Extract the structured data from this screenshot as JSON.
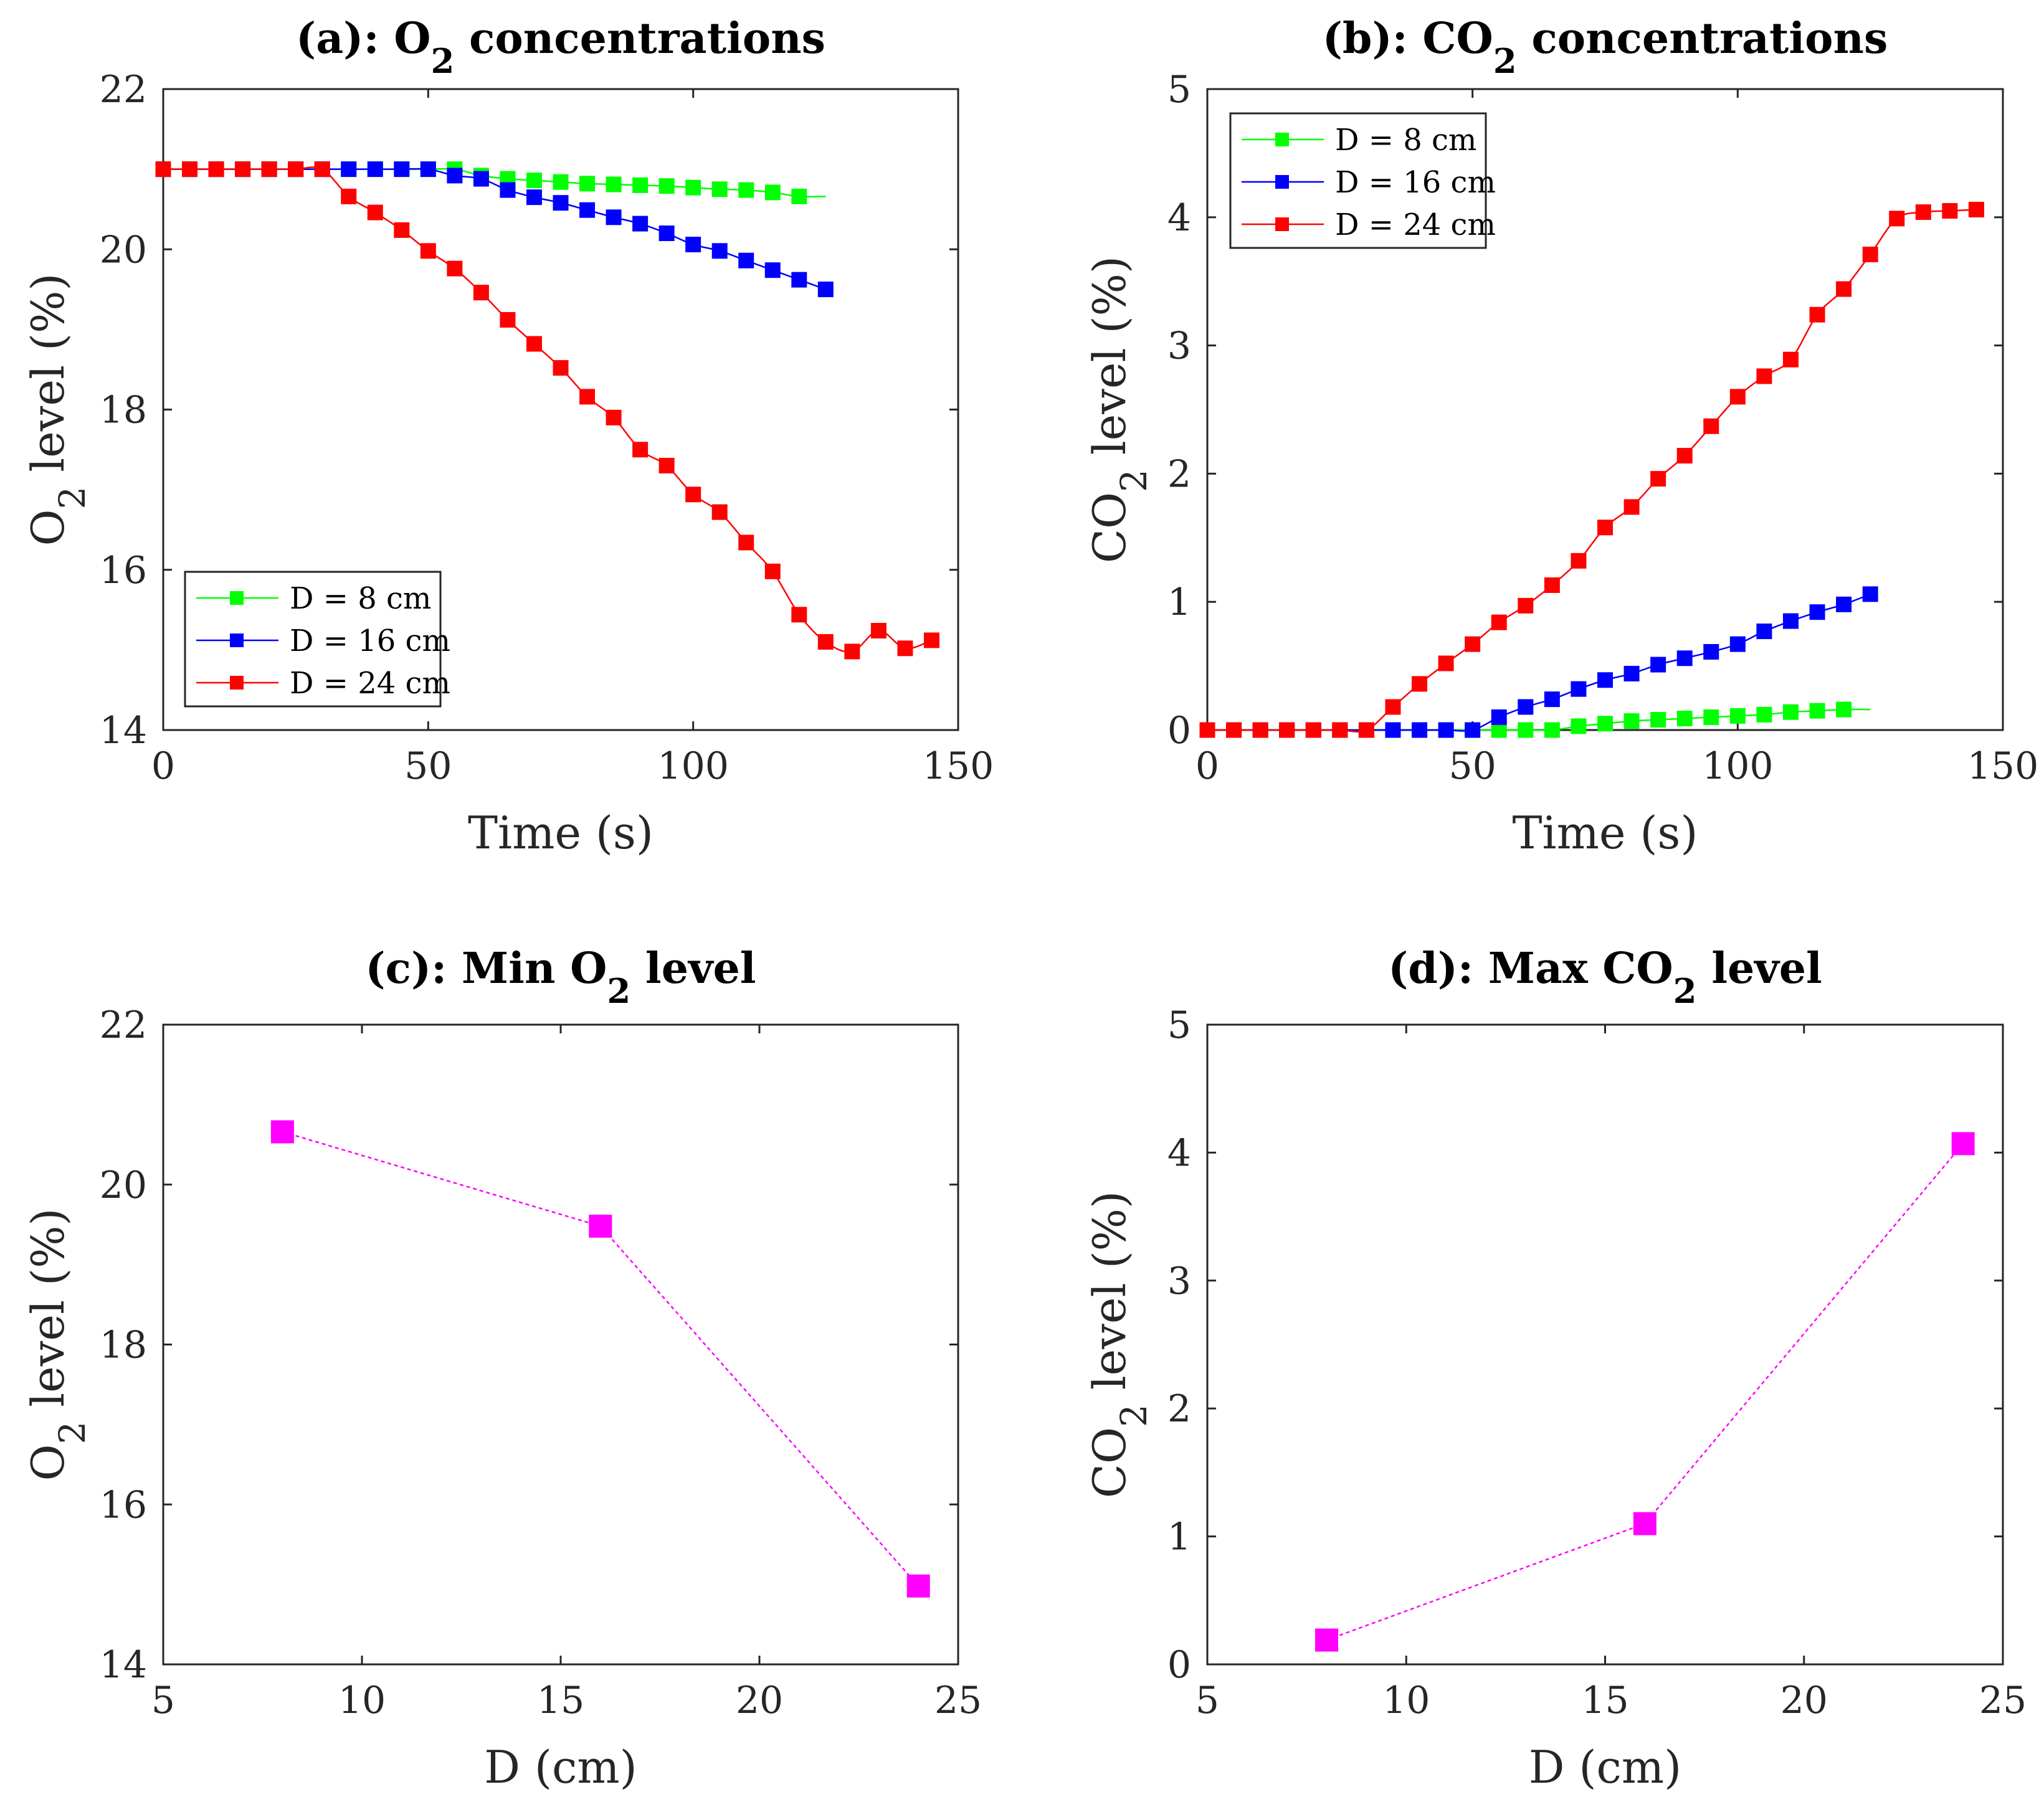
{
  "chart_data": [
    {
      "id": "a",
      "type": "line",
      "title": "(a): O₂ concentrations",
      "xlabel": "Time (s)",
      "ylabel": "O₂ level (%)",
      "xlim": [
        0,
        150
      ],
      "ylim": [
        14,
        22
      ],
      "xticks": [
        0,
        50,
        100,
        150
      ],
      "yticks": [
        14,
        16,
        18,
        20,
        22
      ],
      "legend_position": "bottom-left",
      "series": [
        {
          "name": "D = 8 cm",
          "color": "#00ff00",
          "x": [
            0,
            5,
            10,
            15,
            20,
            25,
            30,
            35,
            40,
            45,
            50,
            55,
            60,
            65,
            70,
            75,
            80,
            85,
            90,
            95,
            100,
            105,
            110,
            115,
            120
          ],
          "y": [
            21,
            21,
            21,
            21,
            21,
            21,
            21,
            21,
            21,
            21,
            21,
            21,
            20.92,
            20.88,
            20.86,
            20.84,
            20.82,
            20.81,
            20.8,
            20.79,
            20.77,
            20.75,
            20.74,
            20.71,
            20.66
          ],
          "line_end_x": 125
        },
        {
          "name": "D = 16 cm",
          "color": "#0000ff",
          "x": [
            0,
            5,
            10,
            15,
            20,
            25,
            30,
            35,
            40,
            45,
            50,
            55,
            60,
            65,
            70,
            75,
            80,
            85,
            90,
            95,
            100,
            105,
            110,
            115,
            120,
            125
          ],
          "y": [
            21,
            21,
            21,
            21,
            21,
            21,
            21,
            21,
            21,
            21,
            21,
            20.92,
            20.88,
            20.74,
            20.65,
            20.58,
            20.49,
            20.4,
            20.32,
            20.2,
            20.06,
            19.98,
            19.86,
            19.74,
            19.62,
            19.5
          ]
        },
        {
          "name": "D = 24 cm",
          "color": "#ff0000",
          "x": [
            0,
            5,
            10,
            15,
            20,
            25,
            30,
            35,
            40,
            45,
            50,
            55,
            60,
            65,
            70,
            75,
            80,
            85,
            90,
            95,
            100,
            105,
            110,
            115,
            120,
            125,
            130,
            135,
            140,
            145
          ],
          "y": [
            21,
            21,
            21,
            21,
            21,
            21,
            21,
            20.66,
            20.46,
            20.24,
            19.98,
            19.76,
            19.46,
            19.12,
            18.82,
            18.52,
            18.16,
            17.9,
            17.5,
            17.3,
            16.94,
            16.72,
            16.34,
            15.98,
            15.44,
            15.1,
            14.98,
            15.24,
            15.02,
            15.12
          ]
        }
      ]
    },
    {
      "id": "b",
      "type": "line",
      "title": "(b): CO₂ concentrations",
      "xlabel": "Time (s)",
      "ylabel": "CO₂ level (%)",
      "xlim": [
        0,
        150
      ],
      "ylim": [
        0,
        5
      ],
      "xticks": [
        0,
        50,
        100,
        150
      ],
      "yticks": [
        0,
        1,
        2,
        3,
        4,
        5
      ],
      "legend_position": "top-left",
      "series": [
        {
          "name": "D = 8 cm",
          "color": "#00ff00",
          "x": [
            0,
            5,
            10,
            15,
            20,
            25,
            30,
            35,
            40,
            45,
            50,
            55,
            60,
            65,
            70,
            75,
            80,
            85,
            90,
            95,
            100,
            105,
            110,
            115,
            120
          ],
          "y": [
            0,
            0,
            0,
            0,
            0,
            0,
            0,
            0,
            0,
            0,
            0,
            0,
            0,
            0,
            0.03,
            0.05,
            0.07,
            0.08,
            0.09,
            0.1,
            0.11,
            0.12,
            0.14,
            0.15,
            0.16
          ],
          "line_end_x": 125
        },
        {
          "name": "D = 16 cm",
          "color": "#0000ff",
          "x": [
            0,
            5,
            10,
            15,
            20,
            25,
            30,
            35,
            40,
            45,
            50,
            55,
            60,
            65,
            70,
            75,
            80,
            85,
            90,
            95,
            100,
            105,
            110,
            115,
            120,
            125
          ],
          "y": [
            0,
            0,
            0,
            0,
            0,
            0,
            0,
            0,
            0,
            0,
            0,
            0.1,
            0.18,
            0.24,
            0.32,
            0.39,
            0.44,
            0.51,
            0.56,
            0.61,
            0.67,
            0.77,
            0.85,
            0.92,
            0.98,
            1.06
          ]
        },
        {
          "name": "D = 24 cm",
          "color": "#ff0000",
          "x": [
            0,
            5,
            10,
            15,
            20,
            25,
            30,
            35,
            40,
            45,
            50,
            55,
            60,
            65,
            70,
            75,
            80,
            85,
            90,
            95,
            100,
            105,
            110,
            115,
            120,
            125,
            130,
            135,
            140,
            145
          ],
          "y": [
            0,
            0,
            0,
            0,
            0,
            0,
            0,
            0.18,
            0.36,
            0.52,
            0.67,
            0.84,
            0.97,
            1.13,
            1.32,
            1.58,
            1.74,
            1.96,
            2.14,
            2.37,
            2.6,
            2.76,
            2.89,
            3.24,
            3.44,
            3.71,
            3.99,
            4.04,
            4.05,
            4.06
          ]
        }
      ]
    },
    {
      "id": "c",
      "type": "line",
      "title": "(c): Min O₂ level",
      "xlabel": "D (cm)",
      "ylabel": "O₂ level (%)",
      "xlim": [
        5,
        25
      ],
      "ylim": [
        14,
        22
      ],
      "xticks": [
        5,
        10,
        15,
        20,
        25
      ],
      "yticks": [
        14,
        16,
        18,
        20,
        22
      ],
      "series": [
        {
          "name": "Min O₂",
          "color": "#ff00ff",
          "dashed": true,
          "x": [
            8,
            16,
            24
          ],
          "y": [
            20.66,
            19.48,
            14.98
          ]
        }
      ]
    },
    {
      "id": "d",
      "type": "line",
      "title": "(d): Max CO₂ level",
      "xlabel": "D (cm)",
      "ylabel": "CO₂ level (%)",
      "xlim": [
        5,
        25
      ],
      "ylim": [
        0,
        5
      ],
      "xticks": [
        5,
        10,
        15,
        20,
        25
      ],
      "yticks": [
        0,
        1,
        2,
        3,
        4,
        5
      ],
      "series": [
        {
          "name": "Max CO₂",
          "color": "#ff00ff",
          "dashed": true,
          "x": [
            8,
            16,
            24
          ],
          "y": [
            0.19,
            1.1,
            4.07
          ]
        }
      ]
    }
  ]
}
